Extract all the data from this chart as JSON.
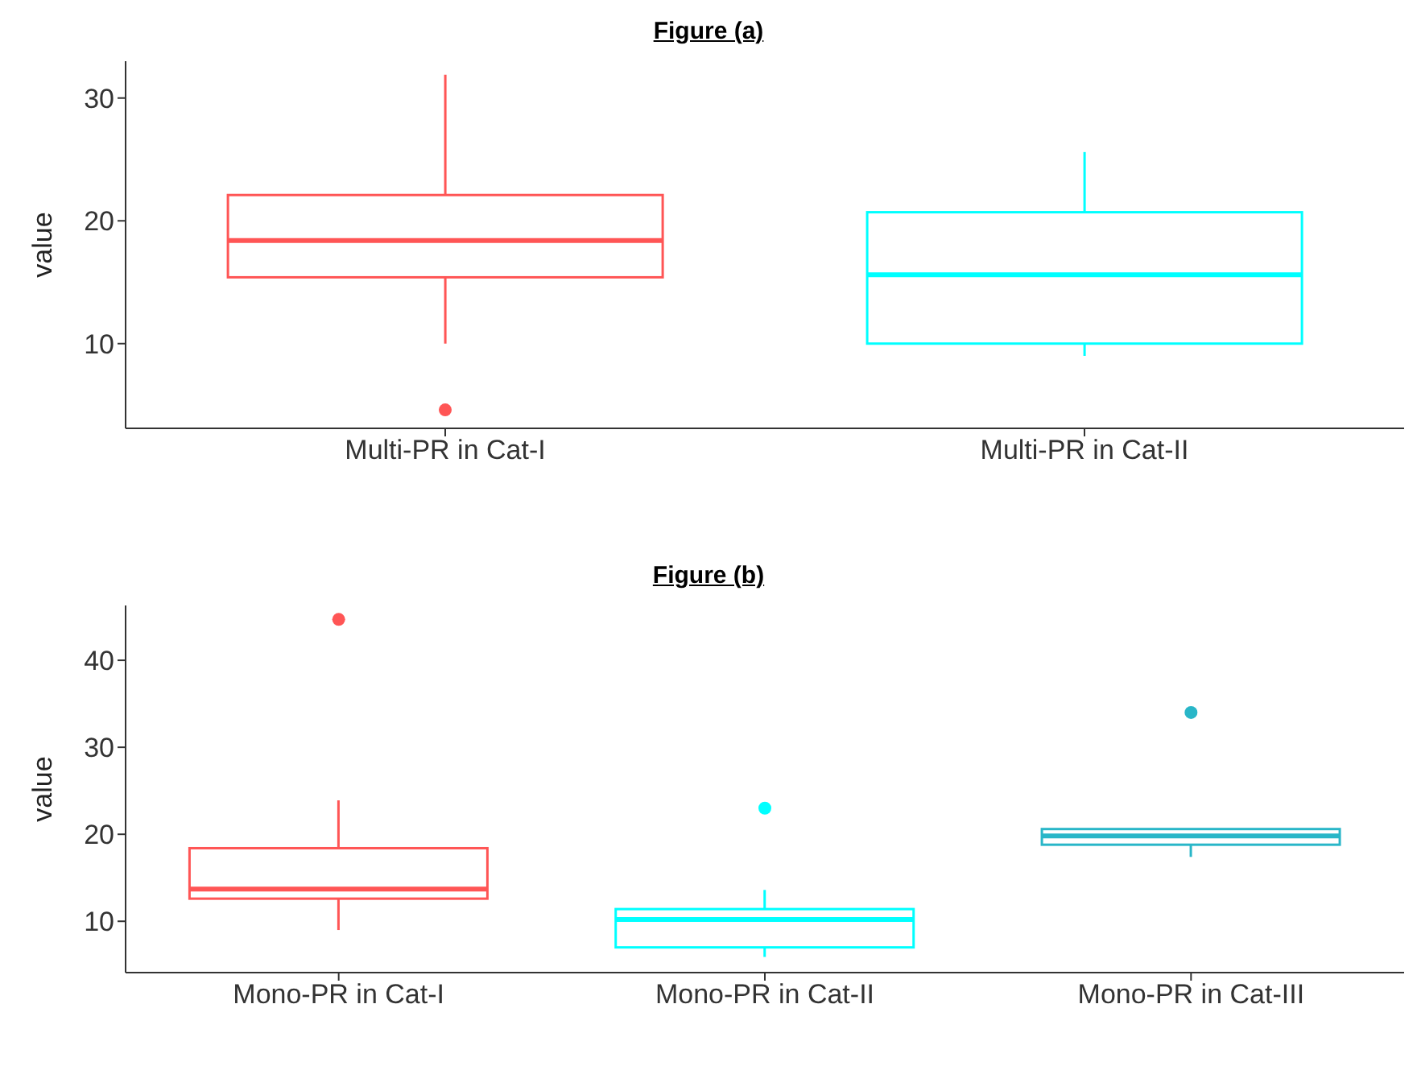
{
  "chart_data": [
    {
      "type": "box",
      "title": "Figure (a)",
      "ylabel": "value",
      "categories": [
        "Multi-PR in Cat-I",
        "Multi-PR in Cat-II"
      ],
      "colors": [
        "#ff5555",
        "#00ffff"
      ],
      "boxes": [
        {
          "low": 10,
          "q1": 15.4,
          "median": 18.4,
          "q3": 22.1,
          "high": 31.9,
          "outliers": [
            4.6
          ]
        },
        {
          "low": 9,
          "q1": 10,
          "median": 15.6,
          "q3": 20.7,
          "high": 25.6
        }
      ],
      "ylim": [
        3.1,
        33
      ],
      "yticks": [
        10,
        20,
        30
      ]
    },
    {
      "type": "box",
      "title": "Figure (b)",
      "ylabel": "value",
      "categories": [
        "Mono-PR in Cat-I",
        "Mono-PR in Cat-II",
        "Mono-PR in Cat-III"
      ],
      "colors": [
        "#ff5555",
        "#00ffff",
        "#29b6c8"
      ],
      "boxes": [
        {
          "low": 9,
          "q1": 12.6,
          "median": 13.7,
          "q3": 18.4,
          "high": 23.9,
          "outliers": [
            44.7
          ]
        },
        {
          "low": 5.9,
          "q1": 7,
          "median": 10.2,
          "q3": 11.4,
          "high": 13.6,
          "outliers": [
            23
          ]
        },
        {
          "low": 17.4,
          "q1": 18.8,
          "median": 19.8,
          "q3": 20.6,
          "high": 20.6,
          "outliers": [
            34
          ]
        }
      ],
      "ylim": [
        4.1,
        46.3
      ],
      "yticks": [
        10,
        20,
        30,
        40
      ]
    }
  ]
}
